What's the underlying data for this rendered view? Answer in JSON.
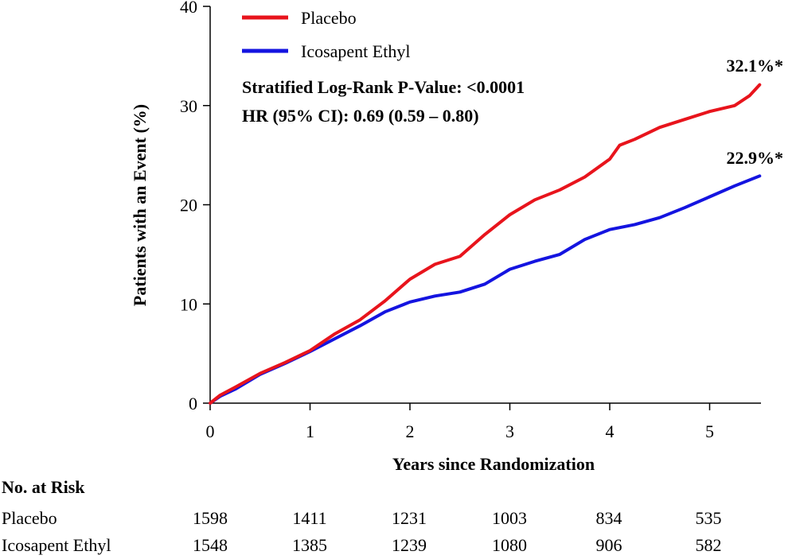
{
  "chart_data": {
    "type": "line",
    "title": "",
    "xlabel": "Years since Randomization",
    "ylabel": "Patients with an Event (%)",
    "xlim": [
      0,
      5.6
    ],
    "ylim": [
      0,
      40
    ],
    "xticks": [
      0,
      1,
      2,
      3,
      4,
      5
    ],
    "yticks": [
      0,
      10,
      20,
      30,
      40
    ],
    "grid": false,
    "legend_position": "top-left",
    "series": [
      {
        "name": "Placebo",
        "color": "#e8141c",
        "x": [
          0,
          0.1,
          0.25,
          0.5,
          0.75,
          1.0,
          1.25,
          1.5,
          1.75,
          2.0,
          2.25,
          2.5,
          2.75,
          3.0,
          3.25,
          3.5,
          3.75,
          4.0,
          4.1,
          4.25,
          4.5,
          4.75,
          5.0,
          5.25,
          5.4,
          5.5
        ],
        "y": [
          0,
          0.8,
          1.6,
          3.0,
          4.1,
          5.3,
          7.0,
          8.4,
          10.3,
          12.5,
          14.0,
          14.8,
          17.0,
          19.0,
          20.5,
          21.5,
          22.8,
          24.6,
          26.0,
          26.6,
          27.8,
          28.6,
          29.4,
          30.0,
          31.0,
          32.1
        ]
      },
      {
        "name": "Icosapent Ethyl",
        "color": "#1414e0",
        "x": [
          0,
          0.1,
          0.25,
          0.5,
          0.75,
          1.0,
          1.25,
          1.5,
          1.75,
          2.0,
          2.25,
          2.5,
          2.75,
          3.0,
          3.25,
          3.5,
          3.75,
          4.0,
          4.25,
          4.5,
          4.75,
          5.0,
          5.25,
          5.5
        ],
        "y": [
          0,
          0.7,
          1.4,
          2.9,
          4.0,
          5.2,
          6.5,
          7.8,
          9.2,
          10.2,
          10.8,
          11.2,
          12.0,
          13.5,
          14.3,
          15.0,
          16.5,
          17.5,
          18.0,
          18.7,
          19.7,
          20.8,
          21.9,
          22.9
        ]
      }
    ],
    "annotations": [
      "Stratified Log-Rank P-Value: <0.0001",
      "HR (95% CI): 0.69 (0.59 – 0.80)"
    ],
    "end_labels": [
      "32.1%*",
      "22.9%*"
    ]
  },
  "risk_table": {
    "title": "No. at Risk",
    "rows": [
      {
        "name": "Placebo",
        "values": [
          "1598",
          "1411",
          "1231",
          "1003",
          "834",
          "535"
        ]
      },
      {
        "name": "Icosapent Ethyl",
        "values": [
          "1548",
          "1385",
          "1239",
          "1080",
          "906",
          "582"
        ]
      }
    ]
  }
}
